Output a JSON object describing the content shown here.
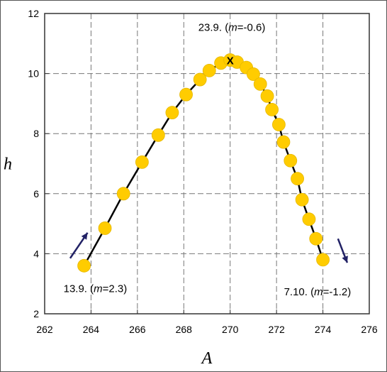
{
  "chart_data": {
    "type": "scatter",
    "title": "",
    "xlabel": "A",
    "ylabel": "h",
    "xlim": [
      262,
      276
    ],
    "ylim": [
      2,
      12
    ],
    "x_ticks": [
      "262",
      "264",
      "266",
      "268",
      "270",
      "272",
      "274",
      "276"
    ],
    "y_ticks": [
      "2",
      "4",
      "6",
      "8",
      "10",
      "12"
    ],
    "grid": true,
    "series": [
      {
        "marker_color": "#FFCC00",
        "line_color": "#000000",
        "points": [
          {
            "x": 263.7,
            "y": 3.6
          },
          {
            "x": 264.6,
            "y": 4.85
          },
          {
            "x": 265.4,
            "y": 6.0
          },
          {
            "x": 266.2,
            "y": 7.05
          },
          {
            "x": 266.9,
            "y": 7.95
          },
          {
            "x": 267.5,
            "y": 8.7
          },
          {
            "x": 268.1,
            "y": 9.3
          },
          {
            "x": 268.7,
            "y": 9.8
          },
          {
            "x": 269.1,
            "y": 10.1
          },
          {
            "x": 269.6,
            "y": 10.35
          },
          {
            "x": 270.0,
            "y": 10.45
          },
          {
            "x": 270.3,
            "y": 10.38
          },
          {
            "x": 270.7,
            "y": 10.2
          },
          {
            "x": 271.0,
            "y": 9.98
          },
          {
            "x": 271.3,
            "y": 9.65
          },
          {
            "x": 271.6,
            "y": 9.25
          },
          {
            "x": 271.8,
            "y": 8.8
          },
          {
            "x": 272.1,
            "y": 8.3
          },
          {
            "x": 272.3,
            "y": 7.72
          },
          {
            "x": 272.6,
            "y": 7.1
          },
          {
            "x": 272.9,
            "y": 6.5
          },
          {
            "x": 273.1,
            "y": 5.8
          },
          {
            "x": 273.4,
            "y": 5.15
          },
          {
            "x": 273.7,
            "y": 4.5
          },
          {
            "x": 274.0,
            "y": 3.8
          }
        ]
      }
    ],
    "peak_marker": {
      "x": 270.0,
      "y": 10.45,
      "symbol": "X"
    },
    "annotations": [
      {
        "text": "13.9.",
        "slope": "2.3",
        "x": 263.7,
        "y": 3.6
      },
      {
        "text": "23.9.",
        "slope": "-0.6",
        "x": 270.0,
        "y": 10.45
      },
      {
        "text": "7.10.",
        "slope": "-1.2",
        "x": 274.0,
        "y": 3.8
      }
    ],
    "arrows": [
      {
        "from": {
          "x": 263.1,
          "y": 3.85
        },
        "to": {
          "x": 263.85,
          "y": 4.7
        },
        "color": "#222266"
      },
      {
        "from": {
          "x": 274.65,
          "y": 4.5
        },
        "to": {
          "x": 275.05,
          "y": 3.7
        },
        "color": "#222266"
      }
    ]
  }
}
